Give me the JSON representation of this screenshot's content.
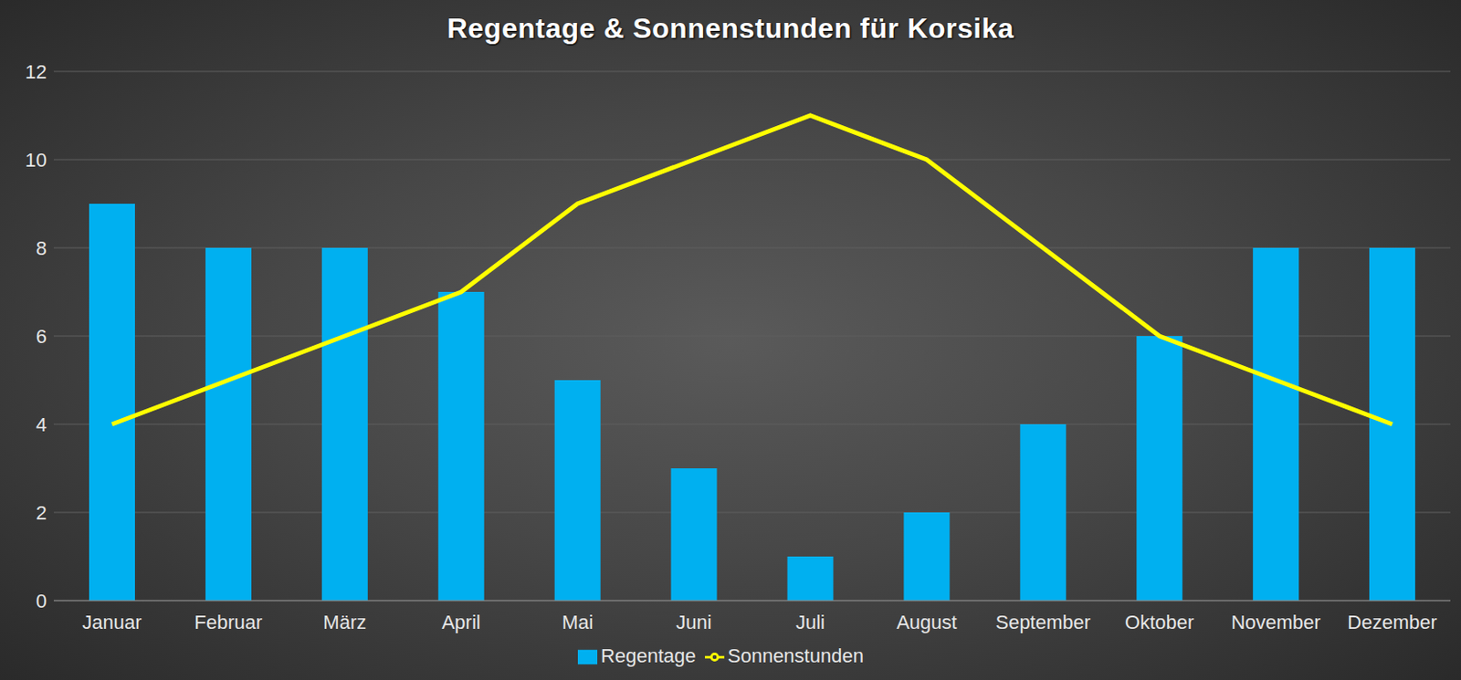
{
  "chart_data": {
    "type": "bar",
    "title": "Regentage & Sonnenstunden für Korsika",
    "categories": [
      "Januar",
      "Februar",
      "März",
      "April",
      "Mai",
      "Juni",
      "Juli",
      "August",
      "September",
      "Oktober",
      "November",
      "Dezember"
    ],
    "series": [
      {
        "name": "Regentage",
        "type": "bar",
        "color": "#00b0f0",
        "values": [
          9,
          8,
          8,
          7,
          5,
          3,
          1,
          2,
          4,
          6,
          8,
          8
        ]
      },
      {
        "name": "Sonnenstunden",
        "type": "line",
        "color": "#ffff00",
        "values": [
          4,
          5,
          6,
          7,
          9,
          10,
          11,
          10,
          8,
          6,
          5,
          4
        ]
      }
    ],
    "ylim": [
      0,
      12
    ],
    "yticks": [
      0,
      2,
      4,
      6,
      8,
      10,
      12
    ],
    "grid": true,
    "legend": "bottom"
  }
}
